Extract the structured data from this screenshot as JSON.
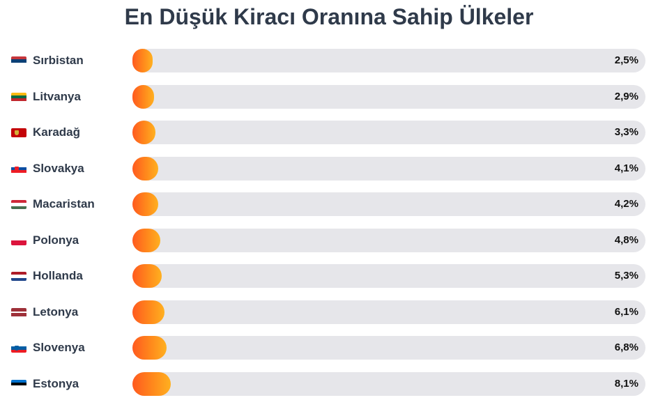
{
  "chart_data": {
    "type": "bar",
    "orientation": "horizontal",
    "title": "En Düşük Kiracı Oranına Sahip Ülkeler",
    "categories": [
      "Sırbistan",
      "Litvanya",
      "Karadağ",
      "Slovakya",
      "Macaristan",
      "Polonya",
      "Hollanda",
      "Letonya",
      "Slovenya",
      "Estonya"
    ],
    "values": [
      2.5,
      2.9,
      3.3,
      4.1,
      4.2,
      4.8,
      5.3,
      6.1,
      6.8,
      8.1
    ],
    "value_labels": [
      "2,5%",
      "2,9%",
      "3,3%",
      "4,1%",
      "4,2%",
      "4,8%",
      "5,3%",
      "6,1%",
      "6,8%",
      "8,1%"
    ],
    "unit": "%",
    "xlim": [
      0,
      100
    ],
    "grid": false,
    "legend": "none",
    "bar_color_start": "#ff5a1f",
    "bar_color_end": "#ffb020",
    "track_color": "#e6e6ea"
  },
  "flags": [
    {
      "country": "Sırbistan",
      "icon": "serbia-flag-icon",
      "stripes": [
        "#c6363c",
        "#0c4076",
        "#ffffff"
      ],
      "vertical": false
    },
    {
      "country": "Litvanya",
      "icon": "lithuania-flag-icon",
      "stripes": [
        "#fdb913",
        "#006a44",
        "#c1272d"
      ],
      "vertical": false
    },
    {
      "country": "Karadağ",
      "icon": "montenegro-flag-icon",
      "stripes": [
        "#c40308"
      ],
      "vertical": false,
      "emblem": "#d4af37"
    },
    {
      "country": "Slovakya",
      "icon": "slovakia-flag-icon",
      "stripes": [
        "#ffffff",
        "#0b4ea2",
        "#ee1c25"
      ],
      "vertical": false,
      "emblem": "#ee1c25"
    },
    {
      "country": "Macaristan",
      "icon": "hungary-flag-icon",
      "stripes": [
        "#ce2939",
        "#ffffff",
        "#477050"
      ],
      "vertical": false
    },
    {
      "country": "Polonya",
      "icon": "poland-flag-icon",
      "stripes": [
        "#ffffff",
        "#dc143c"
      ],
      "vertical": false
    },
    {
      "country": "Hollanda",
      "icon": "netherlands-flag-icon",
      "stripes": [
        "#ae1c28",
        "#ffffff",
        "#21468b"
      ],
      "vertical": false
    },
    {
      "country": "Letonya",
      "icon": "latvia-flag-icon",
      "stripes": [
        "#9e3039",
        "#9e3039",
        "#ffffff",
        "#9e3039",
        "#9e3039"
      ],
      "vertical": false
    },
    {
      "country": "Slovenya",
      "icon": "slovenia-flag-icon",
      "stripes": [
        "#ffffff",
        "#005da4",
        "#ed1c24"
      ],
      "vertical": false,
      "emblem": "#005da4"
    },
    {
      "country": "Estonya",
      "icon": "estonia-flag-icon",
      "stripes": [
        "#0072ce",
        "#000000",
        "#ffffff"
      ],
      "vertical": false
    }
  ]
}
